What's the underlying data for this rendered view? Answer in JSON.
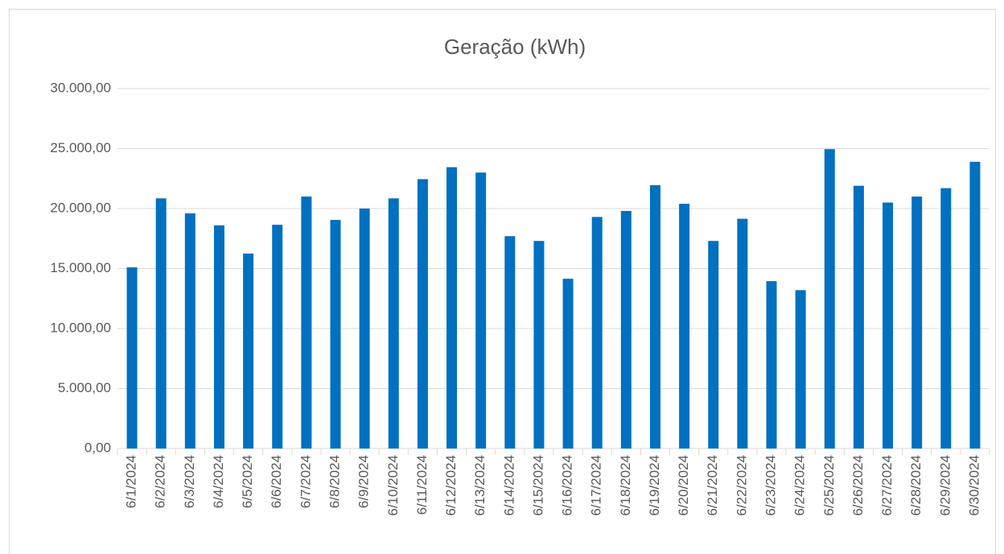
{
  "chart_data": {
    "type": "bar",
    "title": "Geração (kWh)",
    "categories": [
      "6/1/2024",
      "6/2/2024",
      "6/3/2024",
      "6/4/2024",
      "6/5/2024",
      "6/6/2024",
      "6/7/2024",
      "6/8/2024",
      "6/9/2024",
      "6/10/2024",
      "6/11/2024",
      "6/12/2024",
      "6/13/2024",
      "6/14/2024",
      "6/15/2024",
      "6/16/2024",
      "6/17/2024",
      "6/18/2024",
      "6/19/2024",
      "6/20/2024",
      "6/21/2024",
      "6/22/2024",
      "6/23/2024",
      "6/24/2024",
      "6/25/2024",
      "6/26/2024",
      "6/27/2024",
      "6/28/2024",
      "6/29/2024",
      "6/30/2024"
    ],
    "values": [
      15100,
      20850,
      19600,
      18600,
      16250,
      18650,
      21000,
      19050,
      20000,
      20850,
      22450,
      23450,
      23000,
      17700,
      17300,
      14150,
      19300,
      19800,
      21950,
      20400,
      17300,
      19150,
      13950,
      13200,
      24950,
      21900,
      20500,
      21000,
      21700,
      23900
    ],
    "color": "#0070c0",
    "ylim": [
      0,
      30000
    ],
    "yticks": [
      {
        "value": 0,
        "label": "0,00"
      },
      {
        "value": 5000,
        "label": "5.000,00"
      },
      {
        "value": 10000,
        "label": "10.000,00"
      },
      {
        "value": 15000,
        "label": "15.000,00"
      },
      {
        "value": 20000,
        "label": "20.000,00"
      },
      {
        "value": 25000,
        "label": "25.000,00"
      },
      {
        "value": 30000,
        "label": "30.000,00"
      }
    ],
    "grid": true
  }
}
